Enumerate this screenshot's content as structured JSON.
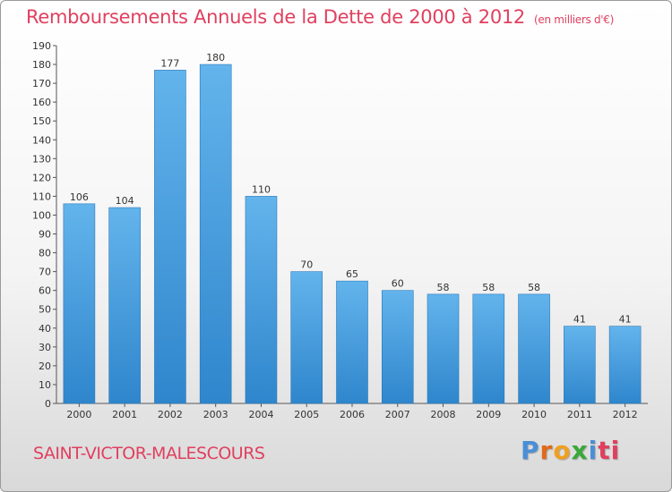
{
  "header": {
    "title": "Remboursements Annuels de la Dette de 2000 à 2012",
    "unit": "(en milliers d'€)"
  },
  "footer": {
    "commune": "SAINT-VICTOR-MALESCOURS",
    "brand": "Proxiti",
    "brand_letters": [
      "P",
      "r",
      "o",
      "x",
      "i",
      "ti"
    ]
  },
  "colors": {
    "bar": "#3a93d6",
    "bar_light": "#5fb1ea",
    "title": "#e0405f"
  },
  "chart_data": {
    "type": "bar",
    "title": "Remboursements Annuels de la Dette de 2000 à 2012",
    "subtitle": "(en milliers d'€)",
    "categories": [
      "2000",
      "2001",
      "2002",
      "2003",
      "2004",
      "2005",
      "2006",
      "2007",
      "2008",
      "2009",
      "2010",
      "2011",
      "2012"
    ],
    "values": [
      106,
      104,
      177,
      180,
      110,
      70,
      65,
      60,
      58,
      58,
      58,
      41,
      41
    ],
    "ylim": [
      0,
      190
    ],
    "ytick_step": 10,
    "grid": false,
    "legend": "none"
  }
}
